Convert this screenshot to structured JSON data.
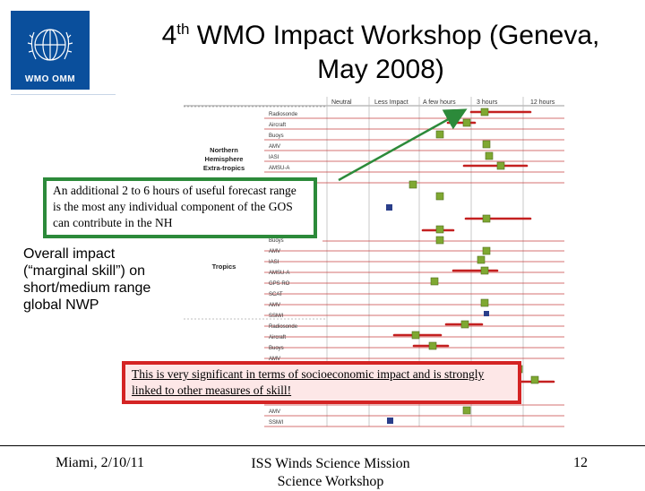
{
  "header": {
    "org_logo": {
      "icon": "wmo-emblem-icon",
      "text": "WMO OMM",
      "color": "#0a4f9c"
    },
    "title_prefix": "4",
    "title_sup": "th",
    "title_rest": " WMO Impact Workshop (Geneva,",
    "title_line2": "May 2008)"
  },
  "chart": {
    "column_headers": [
      "Neutral",
      "Less Impact",
      "A few hours",
      "3 hours",
      "12 hours"
    ],
    "nh_label_lines": [
      "Northern",
      "Hemisphere",
      "Extra-tropics"
    ],
    "tropics_label": "Tropics",
    "top_rows": [
      "Radiosonde",
      "Aircraft",
      "Buoys",
      "AMV",
      "IASI",
      "AMSU-A"
    ],
    "tropics_rows": [
      "Buoys",
      "AMV",
      "IASI",
      "AMSU-A",
      "GPS RO",
      "SCAT",
      "AMV",
      "SSM/I"
    ],
    "lower_rows": [
      "Radiosonde",
      "Aircraft",
      "Buoys",
      "AMV"
    ],
    "bottom_rows": [
      "AMV",
      "SSM/I"
    ],
    "colors": {
      "grid_red": "#c84040",
      "bar_red": "#c42020",
      "marker_green": "#7fa832",
      "marker_lime": "#aac830",
      "marker_blue": "#2a3e8a",
      "arrow_green": "#2c8a3a"
    }
  },
  "callouts": {
    "nh": "An additional 2 to 6 hours of useful forecast range is the most any individual component of the GOS can contribute in the NH",
    "socio": "This is very significant in terms of socioeconomic impact and is strongly linked to other measures of skill!"
  },
  "side_note": "Overall impact (“marginal skill”) on short/medium range global NWP",
  "footer": {
    "left": "Miami, 2/10/11",
    "center_line1": "ISS Winds Science Mission",
    "center_line2": "Science Workshop",
    "page_number": "12"
  }
}
